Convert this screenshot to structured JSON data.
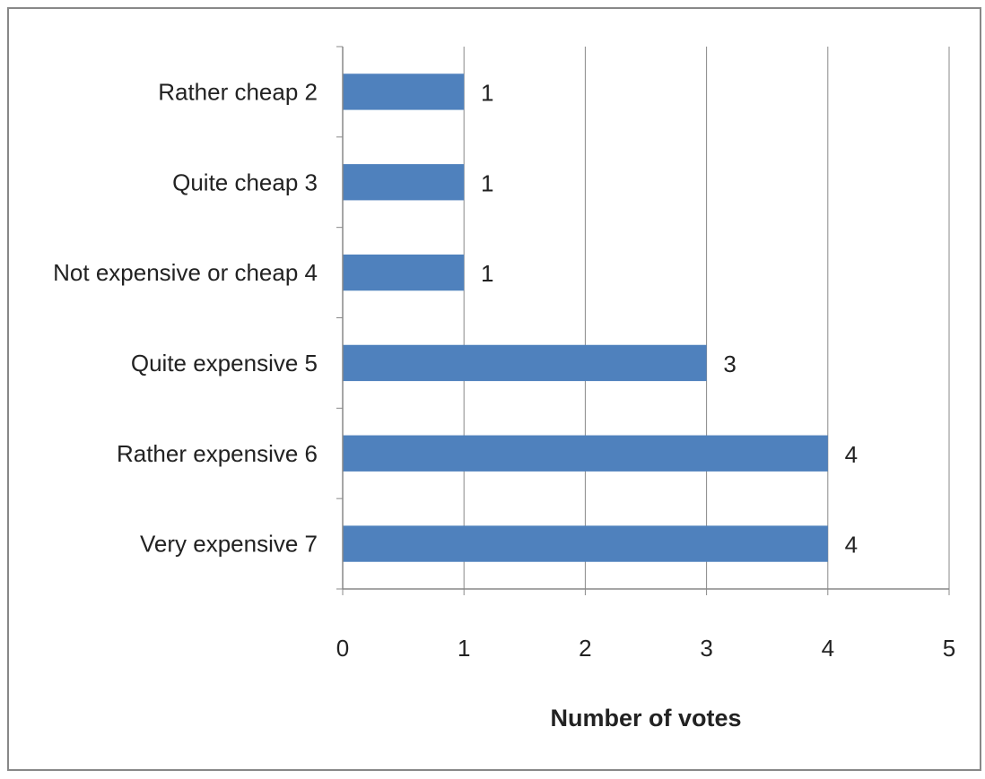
{
  "chart_data": {
    "type": "bar",
    "orientation": "horizontal",
    "categories": [
      "Rather cheap 2",
      "Quite cheap 3",
      "Not expensive or cheap 4",
      "Quite expensive 5",
      "Rather expensive 6",
      "Very expensive 7"
    ],
    "values": [
      1,
      1,
      1,
      3,
      4,
      4
    ],
    "data_labels": [
      "1",
      "1",
      "1",
      "3",
      "4",
      "4"
    ],
    "xlabel": "Number of votes",
    "xlim": [
      0,
      5
    ],
    "xticks": [
      "0",
      "1",
      "2",
      "3",
      "4",
      "5"
    ],
    "grid": "vertical",
    "legend": "none",
    "colors": {
      "bar": "#4f81bd",
      "grid": "#888888",
      "axis": "#888888",
      "border": "#888888"
    }
  }
}
